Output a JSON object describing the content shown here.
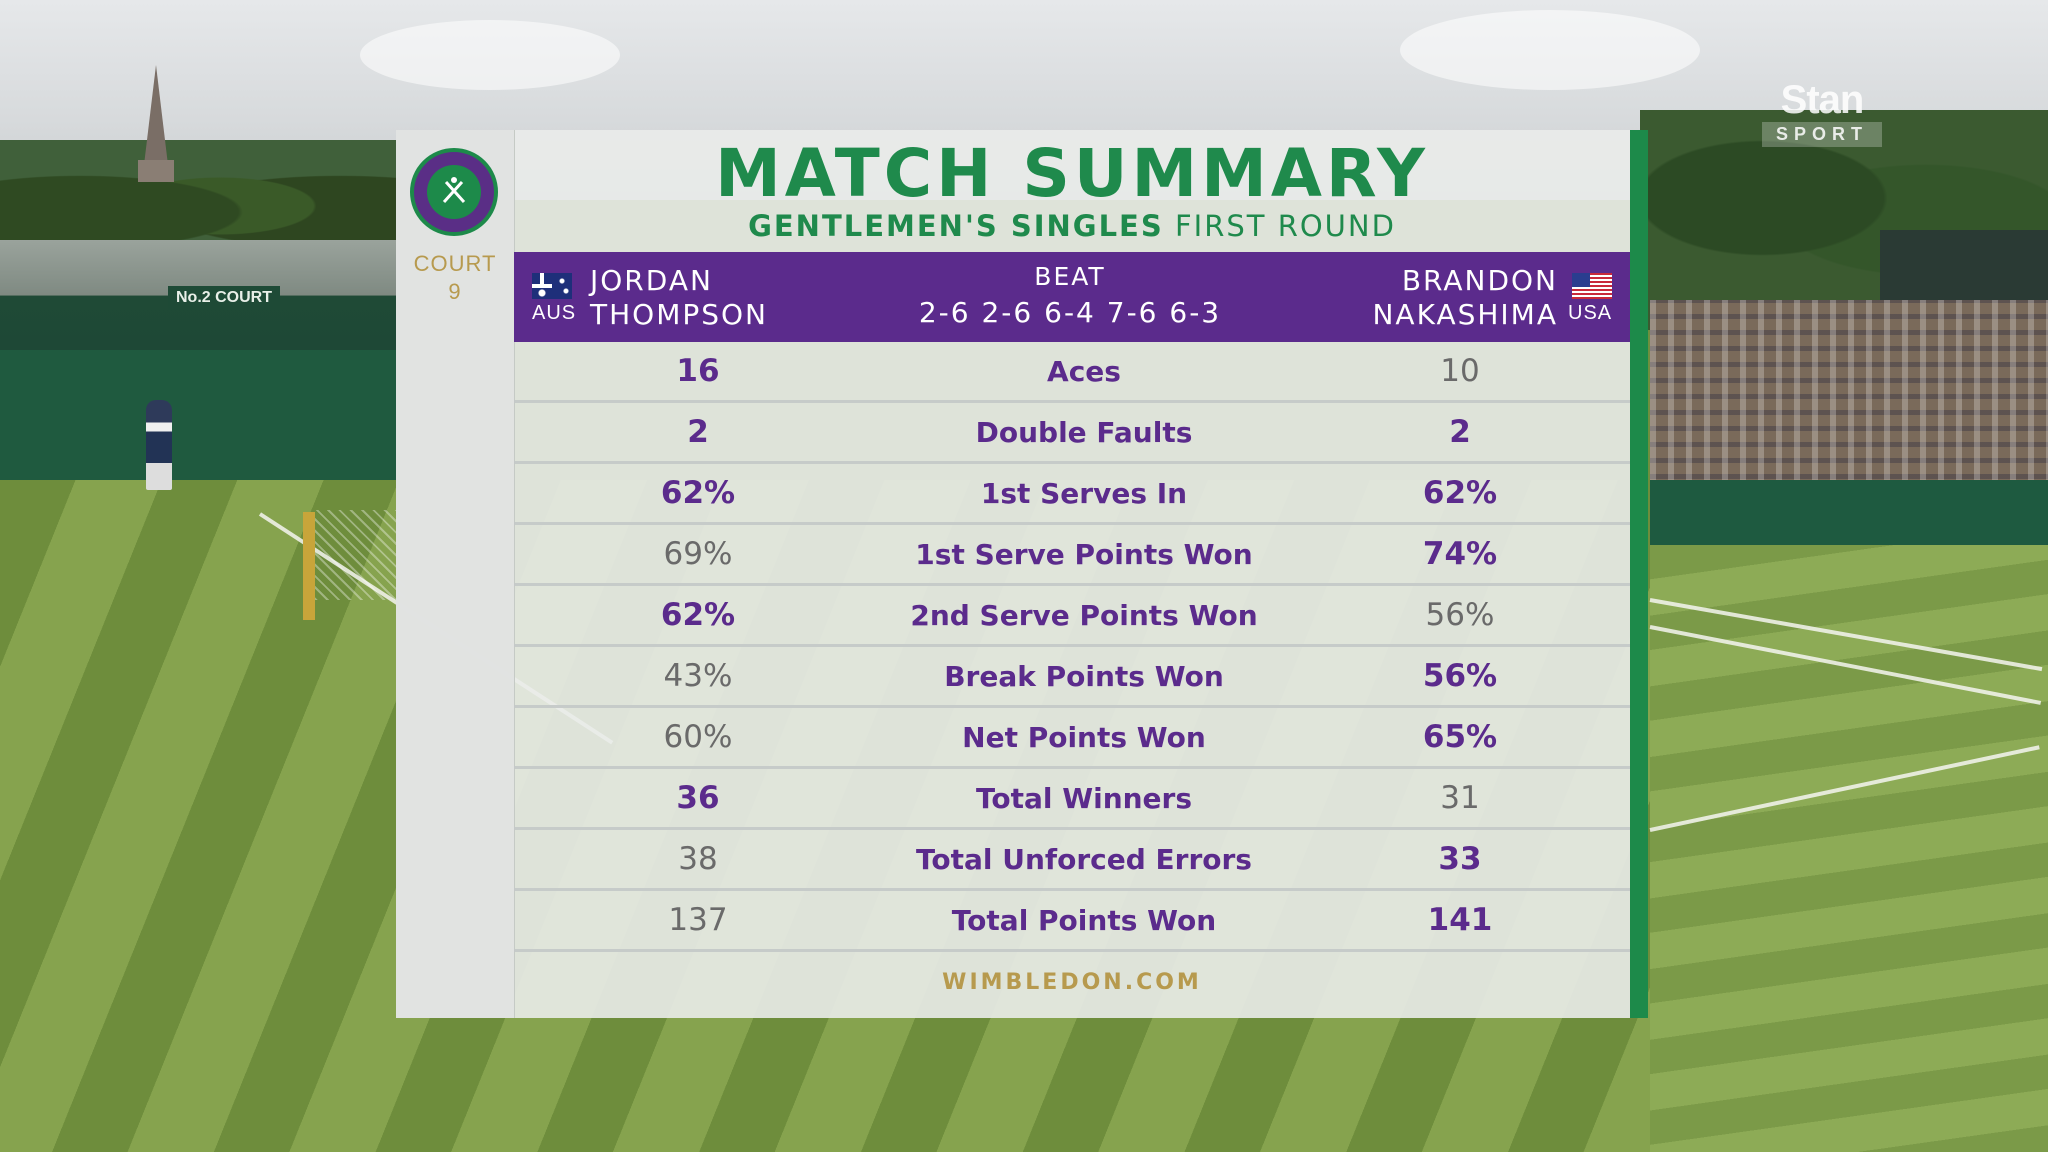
{
  "broadcaster": {
    "name": "Stan",
    "sub": "SPORT"
  },
  "venue_sign": "No.2 COURT",
  "court": {
    "label": "COURT",
    "number": "9"
  },
  "title": "MATCH SUMMARY",
  "subtitle": {
    "event": "GENTLEMEN'S SINGLES",
    "round": "FIRST ROUND"
  },
  "players": {
    "left": {
      "first": "JORDAN",
      "last": "THOMPSON",
      "country": "AUS",
      "flag_icon": "australia-flag-icon"
    },
    "right": {
      "first": "BRANDON",
      "last": "NAKASHIMA",
      "country": "USA",
      "flag_icon": "usa-flag-icon"
    }
  },
  "result": {
    "word": "BEAT",
    "score": "2-6 2-6 6-4 7-6 6-3"
  },
  "stats": [
    {
      "label": "Aces",
      "left": "16",
      "right": "10",
      "left_hi": true,
      "right_hi": false
    },
    {
      "label": "Double Faults",
      "left": "2",
      "right": "2",
      "left_hi": true,
      "right_hi": true
    },
    {
      "label": "1st Serves In",
      "left": "62%",
      "right": "62%",
      "left_hi": true,
      "right_hi": true
    },
    {
      "label": "1st Serve Points Won",
      "left": "69%",
      "right": "74%",
      "left_hi": false,
      "right_hi": true
    },
    {
      "label": "2nd Serve Points Won",
      "left": "62%",
      "right": "56%",
      "left_hi": true,
      "right_hi": false
    },
    {
      "label": "Break Points Won",
      "left": "43%",
      "right": "56%",
      "left_hi": false,
      "right_hi": true
    },
    {
      "label": "Net Points Won",
      "left": "60%",
      "right": "65%",
      "left_hi": false,
      "right_hi": true
    },
    {
      "label": "Total Winners",
      "left": "36",
      "right": "31",
      "left_hi": true,
      "right_hi": false
    },
    {
      "label": "Total Unforced Errors",
      "left": "38",
      "right": "33",
      "left_hi": false,
      "right_hi": true
    },
    {
      "label": "Total Points Won",
      "left": "137",
      "right": "141",
      "left_hi": false,
      "right_hi": true
    }
  ],
  "footer": "WIMBLEDON.COM",
  "colors": {
    "purple": "#5b2b8c",
    "green": "#1f8a4c",
    "gold": "#b79a4e"
  }
}
